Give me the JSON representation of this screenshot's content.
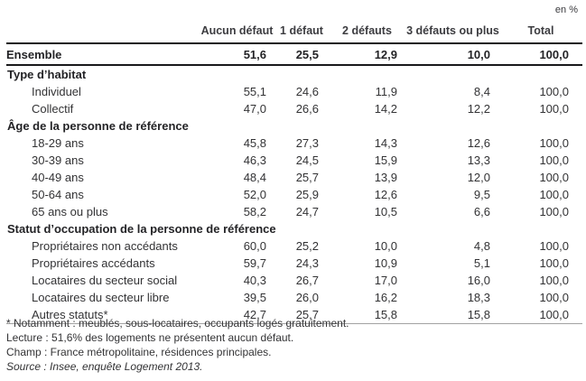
{
  "unit_label": "en %",
  "table": {
    "columns": [
      "",
      "Aucun défaut",
      "1 défaut",
      "2 défauts",
      "3 défauts ou plus",
      "Total"
    ],
    "ensemble": {
      "label": "Ensemble",
      "values": [
        "51,6",
        "25,5",
        "12,9",
        "10,0",
        "100,0"
      ]
    },
    "sections": [
      {
        "title": "Type d’habitat",
        "rows": [
          {
            "label": "Individuel",
            "values": [
              "55,1",
              "24,6",
              "11,9",
              "8,4",
              "100,0"
            ]
          },
          {
            "label": "Collectif",
            "values": [
              "47,0",
              "26,6",
              "14,2",
              "12,2",
              "100,0"
            ]
          }
        ]
      },
      {
        "title": "Âge de la personne de référence",
        "rows": [
          {
            "label": "18-29 ans",
            "values": [
              "45,8",
              "27,3",
              "14,3",
              "12,6",
              "100,0"
            ]
          },
          {
            "label": "30-39 ans",
            "values": [
              "46,3",
              "24,5",
              "15,9",
              "13,3",
              "100,0"
            ]
          },
          {
            "label": "40-49 ans",
            "values": [
              "48,4",
              "25,7",
              "13,9",
              "12,0",
              "100,0"
            ]
          },
          {
            "label": "50-64 ans",
            "values": [
              "52,0",
              "25,9",
              "12,6",
              "9,5",
              "100,0"
            ]
          },
          {
            "label": "65 ans ou plus",
            "values": [
              "58,2",
              "24,7",
              "10,5",
              "6,6",
              "100,0"
            ]
          }
        ]
      },
      {
        "title": "Statut d’occupation de la personne de référence",
        "rows": [
          {
            "label": "Propriétaires non accédants",
            "values": [
              "60,0",
              "25,2",
              "10,0",
              "4,8",
              "100,0"
            ]
          },
          {
            "label": "Propriétaires accédants",
            "values": [
              "59,7",
              "24,3",
              "10,9",
              "5,1",
              "100,0"
            ]
          },
          {
            "label": "Locataires du secteur social",
            "values": [
              "40,3",
              "26,7",
              "17,0",
              "16,0",
              "100,0"
            ]
          },
          {
            "label": "Locataires du secteur libre",
            "values": [
              "39,5",
              "26,0",
              "16,2",
              "18,3",
              "100,0"
            ]
          },
          {
            "label": "Autres statuts*",
            "values": [
              "42,7",
              "25,7",
              "15,8",
              "15,8",
              "100,0"
            ]
          }
        ]
      }
    ]
  },
  "footnotes": [
    "* Notamment : meublés, sous-locataires, occupants logés gratuitement.",
    "Lecture : 51,6% des logements ne présentent aucun défaut.",
    "Champ : France métropolitaine, résidences principales.",
    "Source : Insee, enquête Logement 2013."
  ],
  "chart_data": {
    "type": "table",
    "unit": "en %",
    "columns": [
      "Aucun défaut",
      "1 défaut",
      "2 défauts",
      "3 défauts ou plus",
      "Total"
    ],
    "rows": [
      {
        "label": "Ensemble",
        "values": [
          51.6,
          25.5,
          12.9,
          10.0,
          100.0
        ]
      },
      {
        "label": "Individuel",
        "values": [
          55.1,
          24.6,
          11.9,
          8.4,
          100.0
        ]
      },
      {
        "label": "Collectif",
        "values": [
          47.0,
          26.6,
          14.2,
          12.2,
          100.0
        ]
      },
      {
        "label": "18-29 ans",
        "values": [
          45.8,
          27.3,
          14.3,
          12.6,
          100.0
        ]
      },
      {
        "label": "30-39 ans",
        "values": [
          46.3,
          24.5,
          15.9,
          13.3,
          100.0
        ]
      },
      {
        "label": "40-49 ans",
        "values": [
          48.4,
          25.7,
          13.9,
          12.0,
          100.0
        ]
      },
      {
        "label": "50-64 ans",
        "values": [
          52.0,
          25.9,
          12.6,
          9.5,
          100.0
        ]
      },
      {
        "label": "65 ans ou plus",
        "values": [
          58.2,
          24.7,
          10.5,
          6.6,
          100.0
        ]
      },
      {
        "label": "Propriétaires non accédants",
        "values": [
          60.0,
          25.2,
          10.0,
          4.8,
          100.0
        ]
      },
      {
        "label": "Propriétaires accédants",
        "values": [
          59.7,
          24.3,
          10.9,
          5.1,
          100.0
        ]
      },
      {
        "label": "Locataires du secteur social",
        "values": [
          40.3,
          26.7,
          17.0,
          16.0,
          100.0
        ]
      },
      {
        "label": "Locataires du secteur libre",
        "values": [
          39.5,
          26.0,
          16.2,
          18.3,
          100.0
        ]
      },
      {
        "label": "Autres statuts*",
        "values": [
          42.7,
          25.7,
          15.8,
          15.8,
          100.0
        ]
      }
    ]
  }
}
